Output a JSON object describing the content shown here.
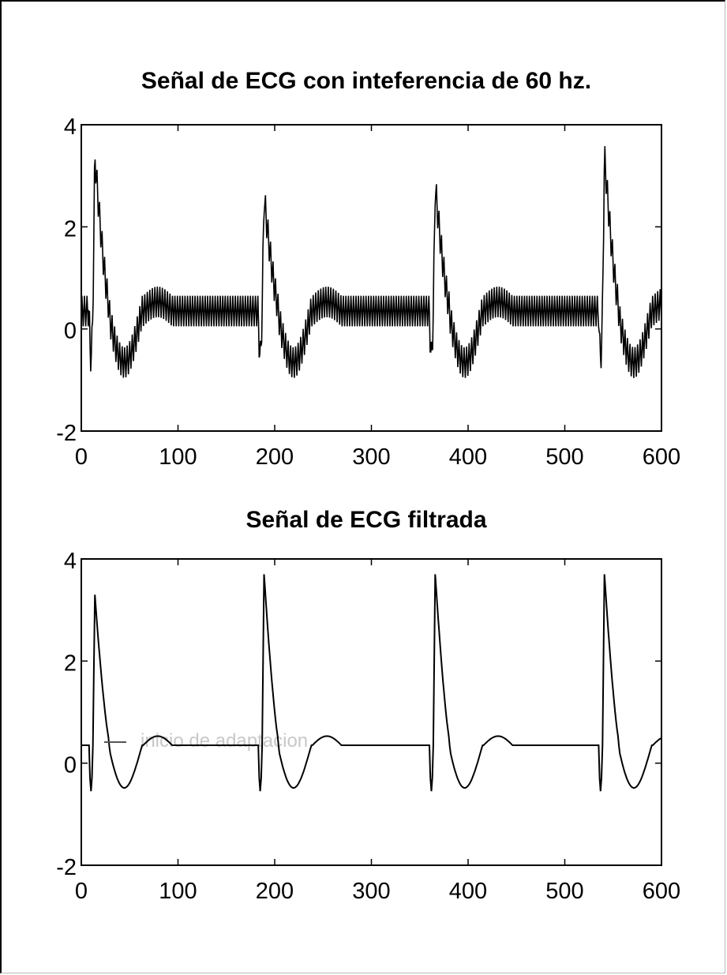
{
  "chart_data": [
    {
      "type": "line",
      "title": "Señal de ECG con inteferencia de 60 hz.",
      "xlabel": "",
      "ylabel": "",
      "xlim": [
        0,
        600
      ],
      "ylim": [
        -2,
        4
      ],
      "xticks": [
        0,
        100,
        200,
        300,
        400,
        500,
        600
      ],
      "yticks": [
        -2,
        0,
        2,
        4
      ],
      "xtick_labels": [
        "0",
        "100",
        "200",
        "300",
        "400",
        "500",
        "600"
      ],
      "ytick_labels": [
        "-2",
        "0",
        "2",
        "4"
      ],
      "grid": false,
      "series": [
        {
          "beat_peaks_x": [
            14,
            189,
            366,
            541
          ],
          "peak_values": [
            3.4,
            2.6,
            2.8,
            3.4
          ],
          "baseline": 0.35,
          "trough_value": -0.8,
          "interference_amplitude": 0.3,
          "interference_frequency": "60 hz",
          "color": "#000000"
        }
      ]
    },
    {
      "type": "line",
      "title": "Señal de ECG filtrada",
      "xlabel": "",
      "ylabel": "",
      "xlim": [
        0,
        600
      ],
      "ylim": [
        -2,
        4
      ],
      "xticks": [
        0,
        100,
        200,
        300,
        400,
        500,
        600
      ],
      "yticks": [
        -2,
        0,
        2,
        4
      ],
      "xtick_labels": [
        "0",
        "100",
        "200",
        "300",
        "400",
        "500",
        "600"
      ],
      "ytick_labels": [
        "-2",
        "0",
        "2",
        "4"
      ],
      "grid": false,
      "annotation": "inicio de adaptacion",
      "series": [
        {
          "beat_peaks_x": [
            14,
            189,
            366,
            541
          ],
          "peak_values": [
            3.3,
            3.7,
            3.7,
            3.7
          ],
          "baseline": 0.35,
          "trough_value": -0.6,
          "color": "#000000"
        }
      ]
    }
  ]
}
